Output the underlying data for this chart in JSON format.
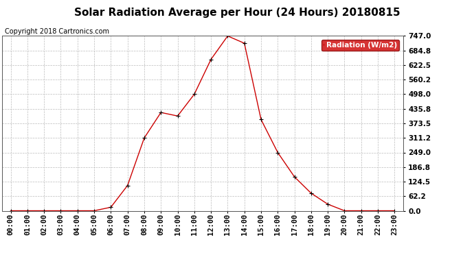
{
  "title": "Solar Radiation Average per Hour (24 Hours) 20180815",
  "copyright": "Copyright 2018 Cartronics.com",
  "legend_label": "Radiation (W/m2)",
  "hours": [
    "00:00",
    "01:00",
    "02:00",
    "03:00",
    "04:00",
    "05:00",
    "06:00",
    "07:00",
    "08:00",
    "09:00",
    "10:00",
    "11:00",
    "12:00",
    "13:00",
    "14:00",
    "15:00",
    "16:00",
    "17:00",
    "18:00",
    "19:00",
    "20:00",
    "21:00",
    "22:00",
    "23:00"
  ],
  "values": [
    0.0,
    0.0,
    0.0,
    0.0,
    0.0,
    0.0,
    15.0,
    108.0,
    311.0,
    420.0,
    405.0,
    498.0,
    647.0,
    747.0,
    716.0,
    390.0,
    249.0,
    145.0,
    75.0,
    28.0,
    0.0,
    0.0,
    0.0,
    0.0
  ],
  "line_color": "#cc0000",
  "marker": "+",
  "marker_color": "#000000",
  "bg_color": "#ffffff",
  "grid_color": "#bbbbbb",
  "yticks": [
    0.0,
    62.2,
    124.5,
    186.8,
    249.0,
    311.2,
    373.5,
    435.8,
    498.0,
    560.2,
    622.5,
    684.8,
    747.0
  ],
  "ymax": 747.0,
  "ymin": 0.0,
  "legend_bg": "#cc0000",
  "legend_text_color": "#ffffff",
  "title_fontsize": 11,
  "copyright_fontsize": 7,
  "tick_fontsize": 7.5,
  "legend_fontsize": 7.5
}
